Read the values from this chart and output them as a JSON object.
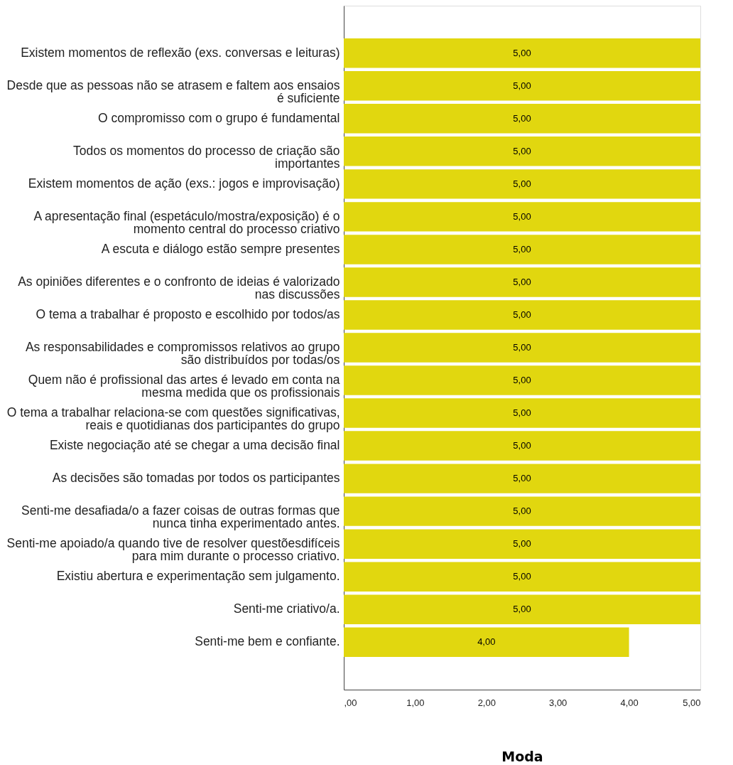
{
  "chart_data": {
    "type": "bar",
    "orientation": "horizontal",
    "xlabel": "Moda",
    "categories": [
      "Existem momentos de reflexão (exs.  conversas e leituras)",
      "Desde que as pessoas não se atrasem e  faltem aos ensaios\né  suficiente",
      "O compromisso com o grupo é  fundamental",
      "Todos os momentos do processo de criação  são\nimportantes",
      "Existem momentos de ação (exs.: jogos e  improvisação)",
      "A apresentação final  (espetáculo/mostra/exposição) é o\nmomento central do  processo criativo",
      "A escuta e diálogo estão sempre presentes",
      "As opiniões diferentes e o confronto de  ideias é valorizado\nnas discussões",
      "O tema a trabalhar é proposto e escolhido  por todos/as",
      "As responsabilidades e compromissos  relativos ao grupo\nsão distribuídos por todas/os",
      "Quem não é profissional das artes é levado  em conta na\nmesma medida que os profissionais",
      "O tema a trabalhar relaciona-se com questões significativas,\nreais e quotidianas dos participantes do grupo",
      "Existe negociação até se chegar a uma  decisão final",
      "As decisões são tomadas por todos os  participantes",
      "Senti-me desafiada/o a fazer coisas de outras formas  que\nnunca tinha experimentado antes.",
      "Senti-me apoiado/a quando tive de resolver questõesdifíceis\npara mim durante o processo criativo.",
      "Existiu abertura e experimentação sem julgamento.",
      "Senti-me criativo/a.",
      "Senti-me bem e confiante."
    ],
    "values": [
      5,
      5,
      5,
      5,
      5,
      5,
      5,
      5,
      5,
      5,
      5,
      5,
      5,
      5,
      5,
      5,
      5,
      5,
      4
    ],
    "value_labels": [
      "5,00",
      "5,00",
      "5,00",
      "5,00",
      "5,00",
      "5,00",
      "5,00",
      "5,00",
      "5,00",
      "5,00",
      "5,00",
      "5,00",
      "5,00",
      "5,00",
      "5,00",
      "5,00",
      "5,00",
      "5,00",
      "4,00"
    ],
    "color": "#e1d70f",
    "xlim": [
      0,
      5
    ],
    "xticks": [
      {
        "value": 0,
        "label": ",00"
      },
      {
        "value": 1,
        "label": "1,00"
      },
      {
        "value": 2,
        "label": "2,00"
      },
      {
        "value": 3,
        "label": "3,00"
      },
      {
        "value": 4,
        "label": "4,00"
      },
      {
        "value": 5,
        "label": "5,00"
      }
    ],
    "grid": false
  }
}
